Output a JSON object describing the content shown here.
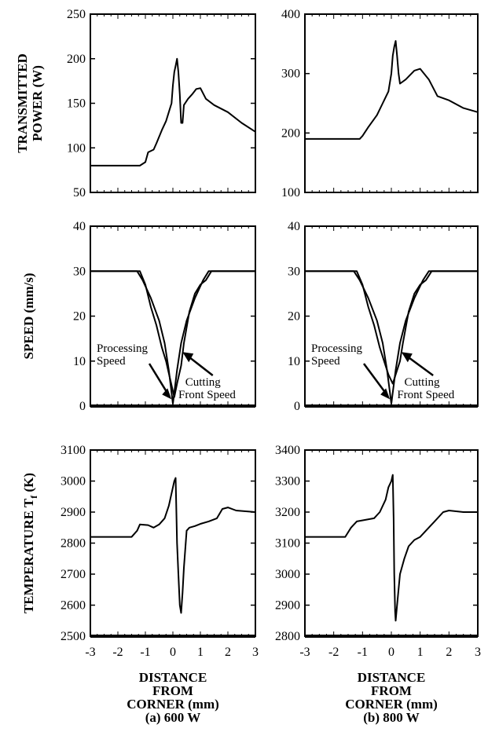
{
  "chart_data": [
    {
      "type": "line",
      "column": 0,
      "row": 0,
      "ylabel_lines": [
        "TRANSMITTED",
        "POWER (W)"
      ],
      "ylim": [
        50,
        250
      ],
      "yticks": [
        50,
        100,
        150,
        200,
        250
      ],
      "xlim": [
        -3,
        3
      ],
      "series": [
        {
          "points": [
            [
              -3,
              80
            ],
            [
              -1.2,
              80
            ],
            [
              -1.0,
              84
            ],
            [
              -0.9,
              95
            ],
            [
              -0.7,
              98
            ],
            [
              -0.6,
              105
            ],
            [
              -0.4,
              120
            ],
            [
              -0.25,
              130
            ],
            [
              -0.15,
              140
            ],
            [
              -0.05,
              150
            ],
            [
              0.0,
              170
            ],
            [
              0.05,
              185
            ],
            [
              0.1,
              192
            ],
            [
              0.15,
              200
            ],
            [
              0.2,
              185
            ],
            [
              0.25,
              160
            ],
            [
              0.3,
              128
            ],
            [
              0.35,
              128
            ],
            [
              0.4,
              148
            ],
            [
              0.55,
              155
            ],
            [
              0.7,
              160
            ],
            [
              0.85,
              166
            ],
            [
              1.0,
              167
            ],
            [
              1.2,
              155
            ],
            [
              1.5,
              148
            ],
            [
              2.0,
              140
            ],
            [
              2.5,
              128
            ],
            [
              3.0,
              118
            ]
          ]
        }
      ]
    },
    {
      "type": "line",
      "column": 1,
      "row": 0,
      "ylim": [
        100,
        400
      ],
      "yticks": [
        100,
        200,
        300,
        400
      ],
      "xlim": [
        -3,
        3
      ],
      "series": [
        {
          "points": [
            [
              -3,
              190
            ],
            [
              -1.1,
              190
            ],
            [
              -1.0,
              195
            ],
            [
              -0.8,
              210
            ],
            [
              -0.5,
              230
            ],
            [
              -0.3,
              250
            ],
            [
              -0.1,
              270
            ],
            [
              0.0,
              300
            ],
            [
              0.05,
              330
            ],
            [
              0.1,
              345
            ],
            [
              0.15,
              355
            ],
            [
              0.2,
              330
            ],
            [
              0.25,
              300
            ],
            [
              0.3,
              283
            ],
            [
              0.5,
              290
            ],
            [
              0.8,
              305
            ],
            [
              1.0,
              308
            ],
            [
              1.3,
              290
            ],
            [
              1.6,
              262
            ],
            [
              2.0,
              255
            ],
            [
              2.5,
              242
            ],
            [
              3.0,
              235
            ]
          ]
        }
      ]
    },
    {
      "type": "line",
      "column": 0,
      "row": 1,
      "ylabel_lines": [
        "SPEED (mm/s)"
      ],
      "ylim": [
        0,
        40
      ],
      "yticks": [
        0,
        10,
        20,
        30,
        40
      ],
      "xlim": [
        -3,
        3
      ],
      "series": [
        {
          "points": [
            [
              -3,
              30
            ],
            [
              -1.3,
              30
            ],
            [
              -1.1,
              28
            ],
            [
              -0.8,
              24
            ],
            [
              -0.5,
              19
            ],
            [
              -0.3,
              14
            ],
            [
              -0.15,
              8
            ],
            [
              -0.05,
              3
            ],
            [
              0,
              0.5
            ],
            [
              0.05,
              3
            ],
            [
              0.15,
              8
            ],
            [
              0.3,
              14
            ],
            [
              0.5,
              19
            ],
            [
              0.8,
              24
            ],
            [
              1.1,
              28
            ],
            [
              1.3,
              30
            ],
            [
              3,
              30
            ]
          ]
        },
        {
          "points": [
            [
              -3,
              30
            ],
            [
              -1.2,
              30
            ],
            [
              -1.0,
              27
            ],
            [
              -0.8,
              22
            ],
            [
              -0.6,
              18
            ],
            [
              -0.4,
              13
            ],
            [
              -0.25,
              10
            ],
            [
              -0.1,
              6
            ],
            [
              0.05,
              2
            ],
            [
              0.15,
              5
            ],
            [
              0.3,
              9
            ],
            [
              0.4,
              14
            ],
            [
              0.6,
              21
            ],
            [
              0.8,
              25
            ],
            [
              1.0,
              27
            ],
            [
              1.2,
              28
            ],
            [
              1.4,
              30
            ],
            [
              3,
              30
            ]
          ]
        }
      ],
      "annotations": [
        {
          "lines": [
            "Processing",
            "Speed"
          ]
        },
        {
          "lines": [
            "Cutting",
            "Front Speed"
          ]
        }
      ]
    },
    {
      "type": "line",
      "column": 1,
      "row": 1,
      "ylim": [
        0,
        40
      ],
      "yticks": [
        0,
        10,
        20,
        30,
        40
      ],
      "xlim": [
        -3,
        3
      ],
      "series": [
        {
          "points": [
            [
              -3,
              30
            ],
            [
              -1.3,
              30
            ],
            [
              -1.1,
              28
            ],
            [
              -0.8,
              24
            ],
            [
              -0.5,
              19
            ],
            [
              -0.3,
              14
            ],
            [
              -0.15,
              8
            ],
            [
              -0.05,
              3
            ],
            [
              0,
              0.5
            ],
            [
              0.05,
              3
            ],
            [
              0.15,
              8
            ],
            [
              0.3,
              14
            ],
            [
              0.5,
              19
            ],
            [
              0.8,
              24
            ],
            [
              1.1,
              28
            ],
            [
              1.3,
              30
            ],
            [
              3,
              30
            ]
          ]
        },
        {
          "points": [
            [
              -3,
              30
            ],
            [
              -1.2,
              30
            ],
            [
              -1.0,
              27
            ],
            [
              -0.8,
              22
            ],
            [
              -0.6,
              18
            ],
            [
              -0.4,
              13
            ],
            [
              -0.25,
              10
            ],
            [
              -0.1,
              7
            ],
            [
              0.05,
              5
            ],
            [
              0.15,
              7
            ],
            [
              0.3,
              10
            ],
            [
              0.4,
              14
            ],
            [
              0.6,
              21
            ],
            [
              0.8,
              25
            ],
            [
              1.0,
              27
            ],
            [
              1.2,
              28
            ],
            [
              1.4,
              30
            ],
            [
              3,
              30
            ]
          ]
        }
      ],
      "annotations": [
        {
          "lines": [
            "Processing",
            "Speed"
          ]
        },
        {
          "lines": [
            "Cutting",
            "Front Speed"
          ]
        }
      ]
    },
    {
      "type": "line",
      "column": 0,
      "row": 2,
      "ylabel_lines": [
        "TEMPERATURE T",
        "f",
        " (K)"
      ],
      "ylim": [
        2500,
        3100
      ],
      "yticks": [
        2500,
        2600,
        2700,
        2800,
        2900,
        3000,
        3100
      ],
      "xlim": [
        -3,
        3
      ],
      "series": [
        {
          "points": [
            [
              -3,
              2820
            ],
            [
              -1.5,
              2820
            ],
            [
              -1.3,
              2840
            ],
            [
              -1.2,
              2860
            ],
            [
              -0.9,
              2858
            ],
            [
              -0.7,
              2850
            ],
            [
              -0.5,
              2860
            ],
            [
              -0.3,
              2880
            ],
            [
              -0.15,
              2920
            ],
            [
              -0.05,
              2960
            ],
            [
              0.05,
              3000
            ],
            [
              0.1,
              3010
            ],
            [
              0.12,
              2930
            ],
            [
              0.15,
              2800
            ],
            [
              0.2,
              2700
            ],
            [
              0.25,
              2600
            ],
            [
              0.3,
              2575
            ],
            [
              0.35,
              2640
            ],
            [
              0.4,
              2720
            ],
            [
              0.5,
              2840
            ],
            [
              0.6,
              2850
            ],
            [
              0.8,
              2855
            ],
            [
              1.0,
              2862
            ],
            [
              1.3,
              2870
            ],
            [
              1.6,
              2880
            ],
            [
              1.8,
              2910
            ],
            [
              2.0,
              2915
            ],
            [
              2.3,
              2905
            ],
            [
              3.0,
              2900
            ]
          ]
        }
      ]
    },
    {
      "type": "line",
      "column": 1,
      "row": 2,
      "ylim": [
        2800,
        3400
      ],
      "yticks": [
        2800,
        2900,
        3000,
        3100,
        3200,
        3300,
        3400
      ],
      "xlim": [
        -3,
        3
      ],
      "series": [
        {
          "points": [
            [
              -3,
              3120
            ],
            [
              -1.6,
              3120
            ],
            [
              -1.4,
              3150
            ],
            [
              -1.2,
              3170
            ],
            [
              -0.9,
              3175
            ],
            [
              -0.6,
              3180
            ],
            [
              -0.4,
              3200
            ],
            [
              -0.2,
              3240
            ],
            [
              -0.1,
              3280
            ],
            [
              0,
              3300
            ],
            [
              0.05,
              3320
            ],
            [
              0.08,
              3180
            ],
            [
              0.1,
              3000
            ],
            [
              0.13,
              2880
            ],
            [
              0.15,
              2850
            ],
            [
              0.2,
              2900
            ],
            [
              0.3,
              3000
            ],
            [
              0.45,
              3050
            ],
            [
              0.6,
              3090
            ],
            [
              0.8,
              3110
            ],
            [
              1.0,
              3120
            ],
            [
              1.2,
              3140
            ],
            [
              1.5,
              3170
            ],
            [
              1.8,
              3200
            ],
            [
              2.0,
              3205
            ],
            [
              2.5,
              3200
            ],
            [
              3.0,
              3200
            ]
          ]
        }
      ]
    }
  ],
  "x_axis": {
    "ticks": [
      -3,
      -2,
      -1,
      0,
      1,
      2,
      3
    ],
    "captions": [
      {
        "lines": [
          "DISTANCE",
          "FROM",
          "CORNER (mm)",
          "(a) 600 W"
        ]
      },
      {
        "lines": [
          "DISTANCE",
          "FROM",
          "CORNER (mm)",
          "(b) 800 W"
        ]
      }
    ]
  }
}
